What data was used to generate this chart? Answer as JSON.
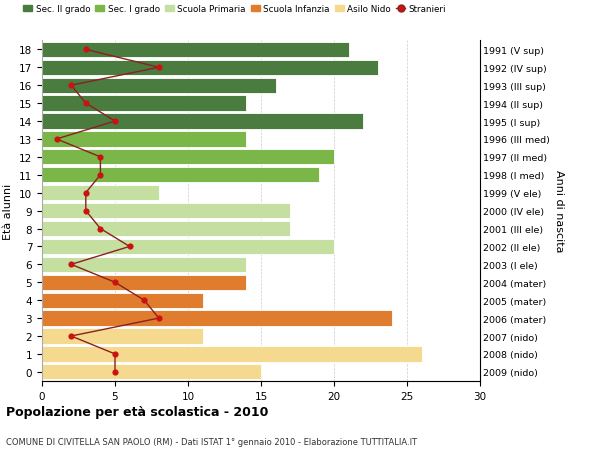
{
  "ages": [
    18,
    17,
    16,
    15,
    14,
    13,
    12,
    11,
    10,
    9,
    8,
    7,
    6,
    5,
    4,
    3,
    2,
    1,
    0
  ],
  "anni_nascita": [
    "1991 (V sup)",
    "1992 (IV sup)",
    "1993 (III sup)",
    "1994 (II sup)",
    "1995 (I sup)",
    "1996 (III med)",
    "1997 (II med)",
    "1998 (I med)",
    "1999 (V ele)",
    "2000 (IV ele)",
    "2001 (III ele)",
    "2002 (II ele)",
    "2003 (I ele)",
    "2004 (mater)",
    "2005 (mater)",
    "2006 (mater)",
    "2007 (nido)",
    "2008 (nido)",
    "2009 (nido)"
  ],
  "bar_values": [
    21,
    23,
    16,
    14,
    22,
    14,
    20,
    19,
    8,
    17,
    17,
    20,
    14,
    14,
    11,
    24,
    11,
    26,
    15
  ],
  "bar_colors": [
    "#4a7c3f",
    "#4a7c3f",
    "#4a7c3f",
    "#4a7c3f",
    "#4a7c3f",
    "#7ab648",
    "#7ab648",
    "#7ab648",
    "#c5dfa0",
    "#c5dfa0",
    "#c5dfa0",
    "#c5dfa0",
    "#c5dfa0",
    "#e07c2e",
    "#e07c2e",
    "#e07c2e",
    "#f5d98e",
    "#f5d98e",
    "#f5d98e"
  ],
  "stranieri_values": [
    3,
    8,
    2,
    3,
    5,
    1,
    4,
    4,
    3,
    3,
    4,
    6,
    2,
    5,
    7,
    8,
    2,
    5,
    5
  ],
  "legend_labels": [
    "Sec. II grado",
    "Sec. I grado",
    "Scuola Primaria",
    "Scuola Infanzia",
    "Asilo Nido",
    "Stranieri"
  ],
  "legend_colors": [
    "#4a7c3f",
    "#7ab648",
    "#c5dfa0",
    "#e07c2e",
    "#f5d98e",
    "#aa2222"
  ],
  "title": "Popolazione per età scolastica - 2010",
  "subtitle": "COMUNE DI CIVITELLA SAN PAOLO (RM) - Dati ISTAT 1° gennaio 2010 - Elaborazione TUTTITALIA.IT",
  "ylabel_left": "Età alunni",
  "ylabel_right": "Anni di nascita",
  "xlim": [
    0,
    30
  ],
  "background_color": "#ffffff",
  "grid_color": "#cccccc",
  "stranieri_line_color": "#8b2020",
  "stranieri_marker_color": "#cc1111"
}
